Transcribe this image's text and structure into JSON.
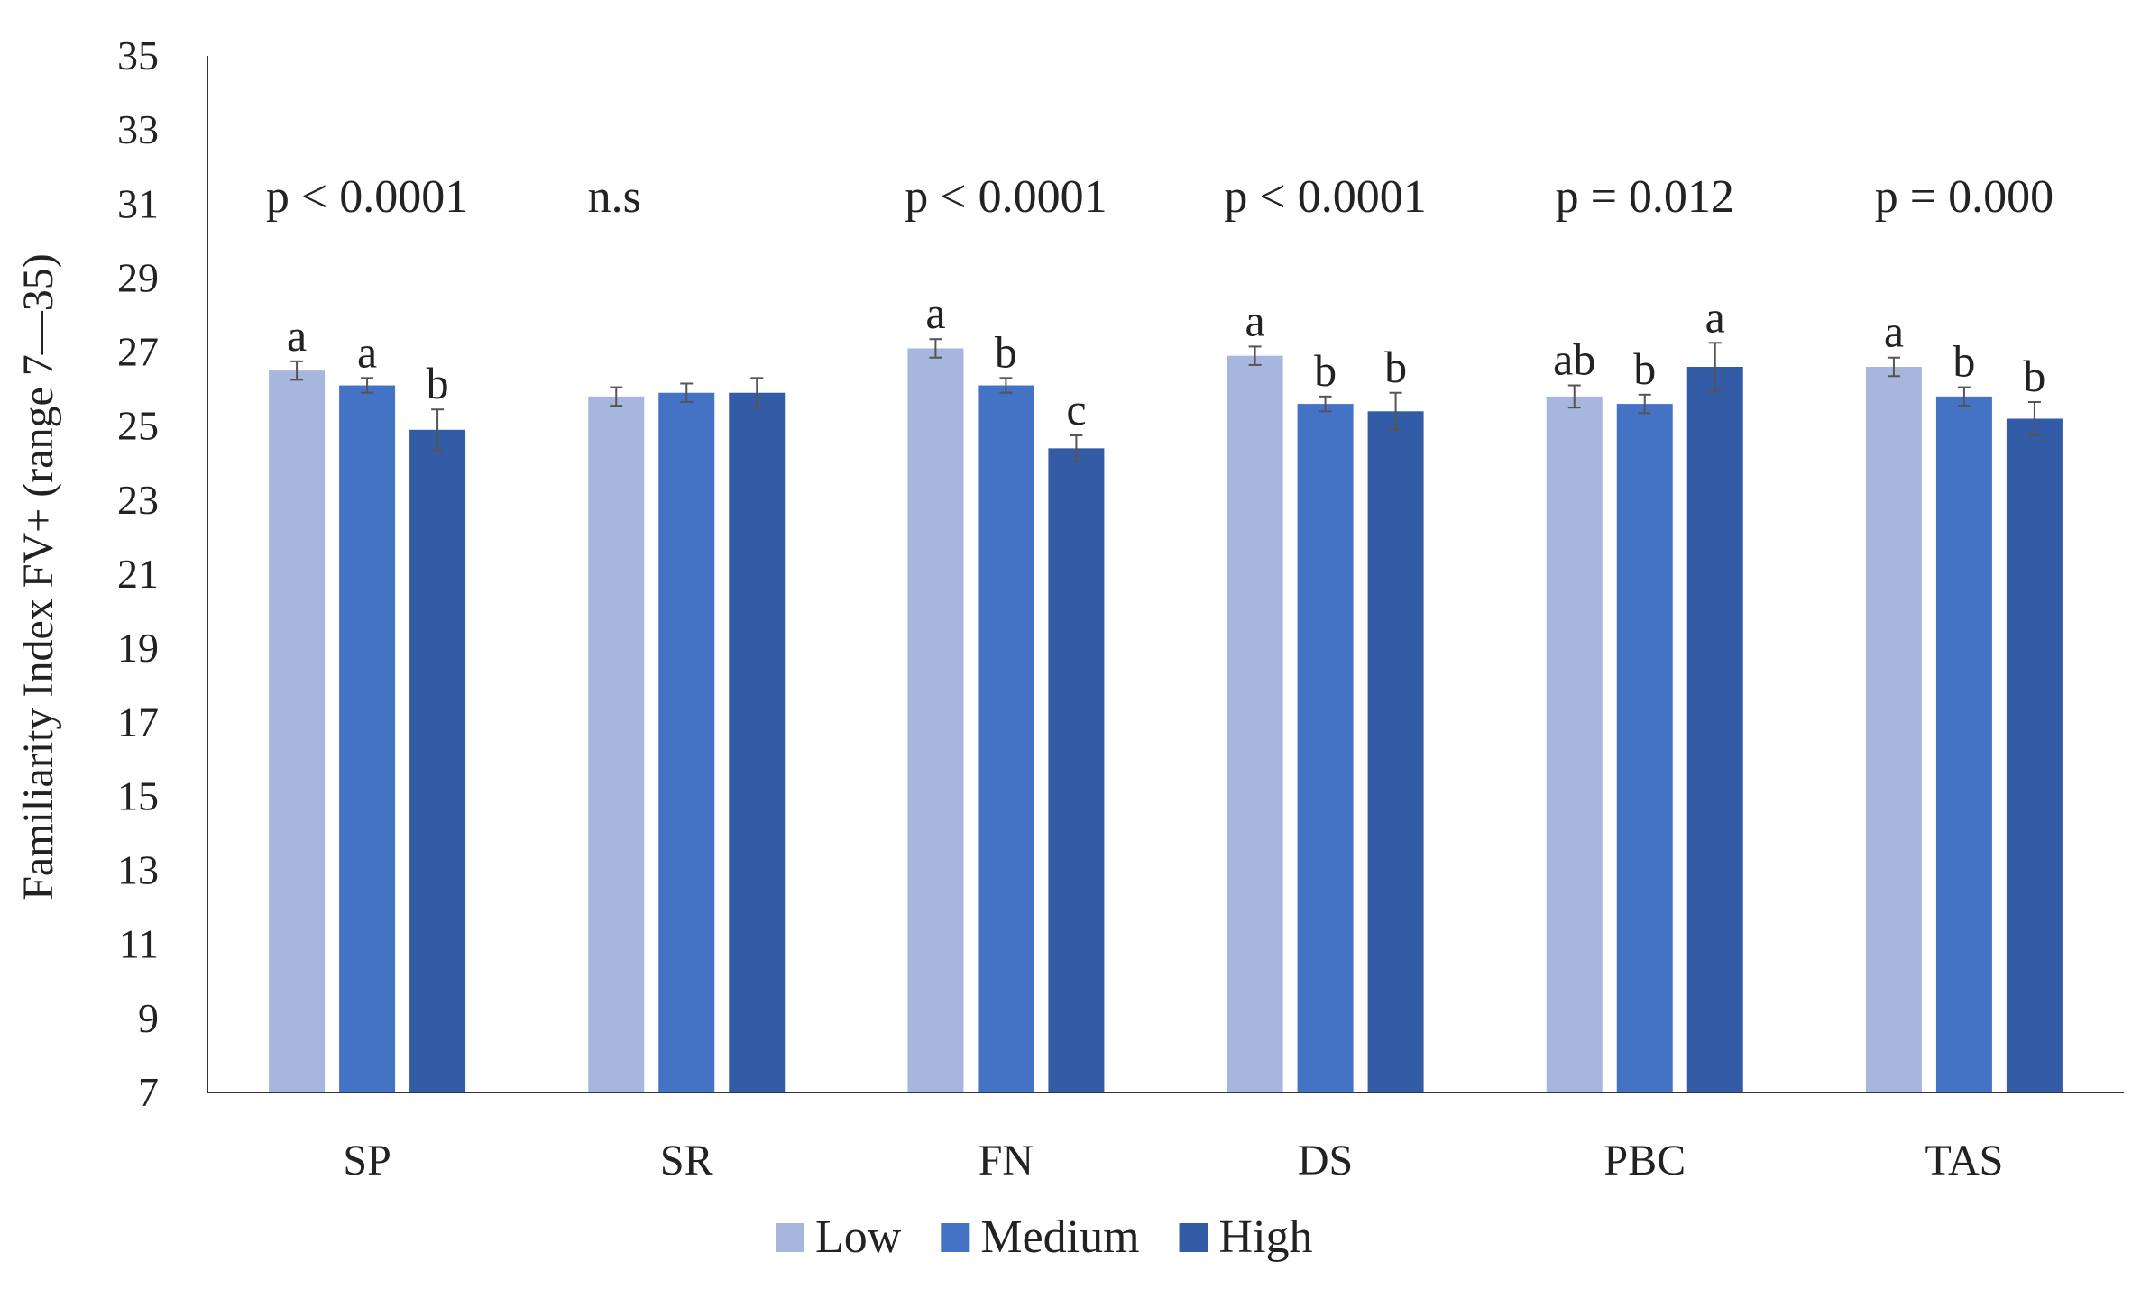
{
  "chart_data": {
    "type": "bar",
    "ylabel": "Familiarity Index FV+ (range 7—35)",
    "xlabel": "",
    "ylim": [
      7,
      35
    ],
    "yticks": [
      7,
      9,
      11,
      13,
      15,
      17,
      19,
      21,
      23,
      25,
      27,
      29,
      31,
      33,
      35
    ],
    "grid": false,
    "legend_position": "bottom",
    "categories": [
      "SP",
      "SR",
      "FN",
      "DS",
      "PBC",
      "TAS"
    ],
    "p_values": [
      "p < 0.0001",
      "n.s",
      "p < 0.0001",
      "p < 0.0001",
      "p = 0.012",
      "p = 0.000"
    ],
    "series": [
      {
        "name": "Low",
        "color": "#A7B6DC",
        "values": [
          26.5,
          25.8,
          27.1,
          26.9,
          25.8,
          26.6
        ],
        "errors": [
          0.25,
          0.25,
          0.25,
          0.25,
          0.3,
          0.25
        ],
        "letters": [
          "a",
          "",
          "a",
          "a",
          "ab",
          "a"
        ]
      },
      {
        "name": "Medium",
        "color": "#4472C4",
        "values": [
          26.1,
          25.9,
          26.1,
          25.6,
          25.6,
          25.8
        ],
        "errors": [
          0.2,
          0.25,
          0.2,
          0.2,
          0.25,
          0.25
        ],
        "letters": [
          "a",
          "",
          "b",
          "b",
          "b",
          "b"
        ]
      },
      {
        "name": "High",
        "color": "#335CA6",
        "values": [
          24.9,
          25.9,
          24.4,
          25.4,
          26.6,
          25.2
        ],
        "errors": [
          0.55,
          0.4,
          0.35,
          0.5,
          0.65,
          0.45
        ],
        "letters": [
          "b",
          "",
          "c",
          "b",
          "a",
          "b"
        ]
      }
    ]
  }
}
